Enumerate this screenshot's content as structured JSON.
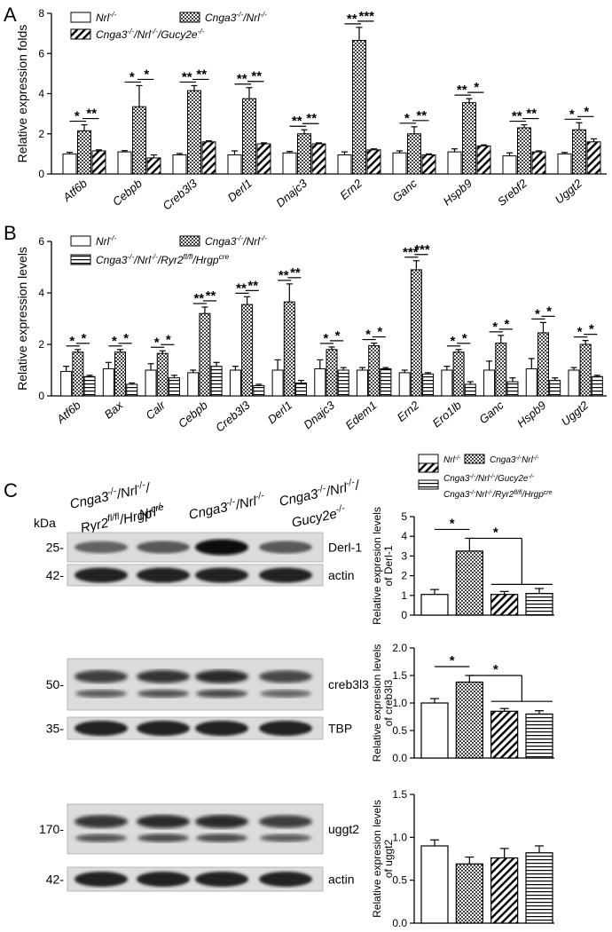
{
  "panels": {
    "a": {
      "letter": "A"
    },
    "b": {
      "letter": "B"
    },
    "c": {
      "letter": "C"
    }
  },
  "colors": {
    "bar_fill": "#ffffff",
    "bar_stroke": "#000000",
    "crosshatch": "#555555",
    "band_dark": "#1a1a1a"
  },
  "chart_data": [
    {
      "id": "a",
      "type": "bar",
      "ylabel": "Relative expression folds",
      "ylim": [
        0,
        8
      ],
      "yticks": [
        0,
        2,
        4,
        6,
        8
      ],
      "legend": {
        "placement": "top-left",
        "entries": [
          "Nrl-/-",
          "Cnga3-/-/Nrl-/-",
          "Cnga3-/-/Nrl-/-/Gucy2e-/-"
        ]
      },
      "categories": [
        "Atf6b",
        "Cebpb",
        "Creb3l3",
        "Derl1",
        "Dnajc3",
        "Ern2",
        "Ganc",
        "Hspb9",
        "Srebf2",
        "Uggt2"
      ],
      "series": [
        {
          "name": "Nrl-/-",
          "pattern": "open",
          "values": [
            1.0,
            1.1,
            0.95,
            0.95,
            1.05,
            0.95,
            1.05,
            1.1,
            0.9,
            1.0
          ],
          "errors": [
            0.08,
            0.06,
            0.07,
            0.2,
            0.07,
            0.15,
            0.1,
            0.15,
            0.15,
            0.07
          ]
        },
        {
          "name": "Cnga3-/-/Nrl-/-",
          "pattern": "crosshatch",
          "values": [
            2.15,
            3.35,
            4.15,
            3.75,
            2.0,
            6.65,
            2.0,
            3.55,
            2.3,
            2.2
          ],
          "errors": [
            0.3,
            1.05,
            0.25,
            0.55,
            0.2,
            0.65,
            0.35,
            0.2,
            0.15,
            0.35
          ]
        },
        {
          "name": "Cnga3-/-/Nrl-/-/Gucy2e-/-",
          "pattern": "diagonal",
          "values": [
            1.15,
            0.8,
            1.6,
            1.5,
            1.5,
            1.2,
            0.95,
            1.4,
            1.1,
            1.6
          ],
          "errors": [
            0.05,
            0.15,
            0.05,
            0.05,
            0.05,
            0.05,
            0.05,
            0.05,
            0.05,
            0.15
          ]
        }
      ],
      "significance": [
        {
          "cat": 0,
          "l": "*",
          "r": "**"
        },
        {
          "cat": 1,
          "l": "*",
          "r": "*"
        },
        {
          "cat": 2,
          "l": "**",
          "r": "**"
        },
        {
          "cat": 3,
          "l": "**",
          "r": "**"
        },
        {
          "cat": 4,
          "l": "**",
          "r": "**"
        },
        {
          "cat": 5,
          "l": "**",
          "r": "***"
        },
        {
          "cat": 6,
          "l": "*",
          "r": "**"
        },
        {
          "cat": 7,
          "l": "**",
          "r": "*"
        },
        {
          "cat": 8,
          "l": "**",
          "r": "**"
        },
        {
          "cat": 9,
          "l": "*",
          "r": "*"
        }
      ]
    },
    {
      "id": "b",
      "type": "bar",
      "ylabel": "Relative expression levels",
      "ylim": [
        0,
        6
      ],
      "yticks": [
        0,
        2,
        4,
        6
      ],
      "legend": {
        "placement": "top-left",
        "entries": [
          "Nrl-/-",
          "Cnga3-/-/Nrl-/-",
          "Cnga3-/-/Nrl-/-/Ryr2fl/fl/Hrgpcre"
        ]
      },
      "categories": [
        "Atf6b",
        "Bax",
        "Calr",
        "Cebpb",
        "Creb3l3",
        "Derl1",
        "Dnajc3",
        "Edem1",
        "Ern2",
        "Ero1lb",
        "Ganc",
        "Hspb9",
        "Uggt2"
      ],
      "series": [
        {
          "name": "Nrl-/-",
          "pattern": "open",
          "values": [
            0.95,
            1.05,
            1.0,
            0.9,
            1.0,
            1.0,
            1.05,
            1.0,
            0.9,
            1.0,
            1.0,
            1.05,
            1.0
          ],
          "errors": [
            0.2,
            0.25,
            0.25,
            0.1,
            0.15,
            0.4,
            0.35,
            0.1,
            0.1,
            0.15,
            0.35,
            0.4,
            0.1
          ]
        },
        {
          "name": "Cnga3-/-/Nrl-/-",
          "pattern": "crosshatch",
          "values": [
            1.7,
            1.7,
            1.65,
            3.2,
            3.55,
            3.65,
            1.8,
            1.95,
            4.9,
            1.7,
            2.05,
            2.45,
            2.0
          ],
          "errors": [
            0.1,
            0.1,
            0.1,
            0.25,
            0.3,
            0.7,
            0.1,
            0.1,
            0.35,
            0.1,
            0.3,
            0.4,
            0.15
          ]
        },
        {
          "name": "Cnga3-/-/Nrl-/-/Ryr2fl/fl/Hrgpcre",
          "pattern": "horizontal",
          "values": [
            0.75,
            0.45,
            0.7,
            1.15,
            0.4,
            0.5,
            1.0,
            1.05,
            0.85,
            0.45,
            0.55,
            0.6,
            0.75
          ],
          "errors": [
            0.05,
            0.05,
            0.1,
            0.15,
            0.05,
            0.1,
            0.1,
            0.05,
            0.05,
            0.1,
            0.15,
            0.1,
            0.05
          ]
        }
      ],
      "significance": [
        {
          "cat": 0,
          "l": "*",
          "r": "*"
        },
        {
          "cat": 1,
          "l": "*",
          "r": "*"
        },
        {
          "cat": 2,
          "l": "*",
          "r": "*"
        },
        {
          "cat": 3,
          "l": "**",
          "r": "**"
        },
        {
          "cat": 4,
          "l": "**",
          "r": "**"
        },
        {
          "cat": 5,
          "l": "**",
          "r": "**"
        },
        {
          "cat": 6,
          "l": "*",
          "r": "*"
        },
        {
          "cat": 7,
          "l": "*",
          "r": "*"
        },
        {
          "cat": 8,
          "l": "***",
          "r": "***"
        },
        {
          "cat": 9,
          "l": "*",
          "r": "*"
        },
        {
          "cat": 10,
          "l": "*",
          "r": "*"
        },
        {
          "cat": 11,
          "l": "*",
          "r": "*"
        },
        {
          "cat": 12,
          "l": "*",
          "r": "*"
        }
      ]
    },
    {
      "id": "c1",
      "type": "bar",
      "ylabel": "Relative expresion levels",
      "ylabel2": "of Derl-1",
      "ylim": [
        0,
        5
      ],
      "yticks": [
        0,
        1,
        2,
        3,
        4,
        5
      ],
      "legend": {
        "placement": "top",
        "entries": [
          "Nrl-/-",
          "Cnga3-/-Nrl-/-",
          "Cnga3-/-/Nrl-/-/Gucy2e-/-",
          "Cnga3-/-Nrl-/-/Ryr2fl/fl/Hrgpcre"
        ]
      },
      "categories": [
        "Nrl-/-",
        "Cnga3-/-Nrl-/-",
        "Cnga3-/-/Nrl-/-/Gucy2e-/-",
        "Cnga3-/-Nrl-/-/Ryr2fl/fl/Hrgpcre"
      ],
      "values": [
        1.05,
        3.25,
        1.05,
        1.1
      ],
      "errors": [
        0.25,
        0.65,
        0.15,
        0.25
      ],
      "patterns": [
        "open",
        "crosshatch",
        "diagonal",
        "horizontal"
      ],
      "significance": [
        "*",
        "*"
      ]
    },
    {
      "id": "c2",
      "type": "bar",
      "ylabel": "Relative expresion levels",
      "ylabel2": "of creb3l3",
      "ylim": [
        0,
        2.0
      ],
      "yticks": [
        0.0,
        0.5,
        1.0,
        1.5,
        2.0
      ],
      "categories": [
        "Nrl-/-",
        "Cnga3-/-Nrl-/-",
        "Cnga3-/-/Nrl-/-/Gucy2e-/-",
        "Cnga3-/-Nrl-/-/Ryr2fl/fl/Hrgpcre"
      ],
      "values": [
        1.0,
        1.38,
        0.85,
        0.8
      ],
      "errors": [
        0.08,
        0.12,
        0.05,
        0.06
      ],
      "patterns": [
        "open",
        "crosshatch",
        "diagonal",
        "horizontal"
      ],
      "significance": [
        "*",
        "*"
      ]
    },
    {
      "id": "c3",
      "type": "bar",
      "ylabel": "Relative expresion levels",
      "ylabel2": "of uggt2",
      "ylim": [
        0,
        1.5
      ],
      "yticks": [
        0.0,
        0.5,
        1.0,
        1.5
      ],
      "categories": [
        "Nrl-/-",
        "Cnga3-/-Nrl-/-",
        "Cnga3-/-/Nrl-/-/Gucy2e-/-",
        "Cnga3-/-Nrl-/-/Ryr2fl/fl/Hrgpcre"
      ],
      "values": [
        0.9,
        0.69,
        0.76,
        0.82
      ],
      "errors": [
        0.07,
        0.08,
        0.11,
        0.08
      ],
      "patterns": [
        "open",
        "crosshatch",
        "diagonal",
        "horizontal"
      ],
      "significance": []
    }
  ],
  "blots": {
    "kda": "kDa",
    "lanes": [
      {
        "l1": "Cnga3",
        "s1": "-/-",
        "l2": "/Nrl",
        "s2": "-/-",
        "l3": "/"
      },
      {
        "l1": "Nrl",
        "s1": "-/-"
      },
      {
        "l1": "Cnga3",
        "s1": "-/-",
        "l2": "/Nrl",
        "s2": "-/-"
      },
      {
        "l1": "Cnga3",
        "s1": "-/-",
        "l2": "/Nrl",
        "s2": "-/-",
        "l3": "/"
      }
    ],
    "lane1_line2": {
      "a": "Ryr2",
      "s": "fl/fl",
      "b": "/Hrgp",
      "t": "cre"
    },
    "lane4_line2": {
      "a": "Gucy2e",
      "s": "-/-"
    },
    "groups": [
      {
        "rows": [
          {
            "kda": "25-",
            "label": "Derl-1",
            "intensity": [
              0.55,
              0.6,
              1.0,
              0.6
            ],
            "double": false
          },
          {
            "kda": "42-",
            "label": "actin",
            "intensity": [
              0.9,
              0.9,
              0.9,
              0.9
            ],
            "double": false
          }
        ]
      },
      {
        "rows": [
          {
            "kda": "50-",
            "label": "creb3l3",
            "intensity": [
              0.75,
              0.8,
              0.85,
              0.7
            ],
            "double": true
          },
          {
            "kda": "35-",
            "label": "TBP",
            "intensity": [
              0.9,
              0.9,
              0.9,
              0.9
            ],
            "double": false
          }
        ]
      },
      {
        "rows": [
          {
            "kda": "170-",
            "label": "uggt2",
            "intensity": [
              0.8,
              0.85,
              0.85,
              0.75
            ],
            "double": true
          },
          {
            "kda": "42-",
            "label": "actin",
            "intensity": [
              0.9,
              0.9,
              0.9,
              0.9
            ],
            "double": false
          }
        ]
      }
    ]
  }
}
